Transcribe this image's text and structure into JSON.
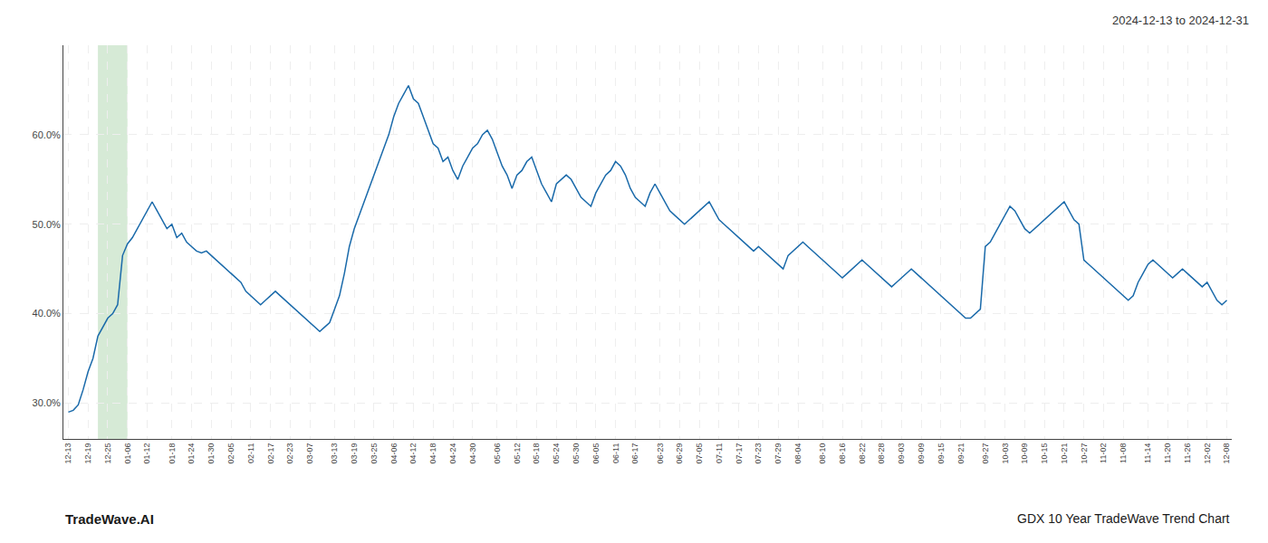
{
  "chart_data": {
    "type": "line",
    "title": "2024-12-13 to 2024-12-31",
    "annotations": [
      "TradeWave.AI",
      "GDX 10 Year TradeWave Trend Chart"
    ],
    "color": "#1a6aaa",
    "grid": true,
    "ylim": [
      26,
      70
    ],
    "yticks": [
      {
        "value": 30.0,
        "label": "30.0%"
      },
      {
        "value": 40.0,
        "label": "40.0%"
      },
      {
        "value": 50.0,
        "label": "50.0%"
      },
      {
        "value": 60.0,
        "label": "60.0%"
      }
    ],
    "highlight": {
      "from": 6,
      "to": 12,
      "color": "#d6ead6"
    },
    "categories": [
      "12-13",
      null,
      null,
      null,
      "12-19",
      null,
      null,
      null,
      "12-25",
      null,
      null,
      null,
      "01-06",
      null,
      null,
      null,
      "01-12",
      null,
      null,
      null,
      null,
      "01-18",
      null,
      null,
      null,
      "01-24",
      null,
      null,
      null,
      "01-30",
      null,
      null,
      null,
      "02-05",
      null,
      null,
      null,
      "02-11",
      null,
      null,
      null,
      "02-17",
      null,
      null,
      null,
      "02-23",
      null,
      null,
      null,
      "03-07",
      null,
      null,
      null,
      null,
      "03-13",
      null,
      null,
      null,
      "03-19",
      null,
      null,
      null,
      "03-25",
      null,
      null,
      null,
      "04-06",
      null,
      null,
      null,
      "04-12",
      null,
      null,
      null,
      "04-18",
      null,
      null,
      null,
      "04-24",
      null,
      null,
      null,
      "04-30",
      null,
      null,
      null,
      null,
      "05-06",
      null,
      null,
      null,
      "05-12",
      null,
      null,
      null,
      "05-18",
      null,
      null,
      null,
      "05-24",
      null,
      null,
      null,
      "05-30",
      null,
      null,
      null,
      "06-05",
      null,
      null,
      null,
      "06-11",
      null,
      null,
      null,
      "06-17",
      null,
      null,
      null,
      null,
      "06-23",
      null,
      null,
      null,
      "06-29",
      null,
      null,
      null,
      "07-05",
      null,
      null,
      null,
      "07-11",
      null,
      null,
      null,
      "07-17",
      null,
      null,
      null,
      "07-23",
      null,
      null,
      null,
      "07-29",
      null,
      null,
      null,
      "08-04",
      null,
      null,
      null,
      null,
      "08-10",
      null,
      null,
      null,
      "08-16",
      null,
      null,
      null,
      "08-22",
      null,
      null,
      null,
      "08-28",
      null,
      null,
      null,
      "09-03",
      null,
      null,
      null,
      "09-09",
      null,
      null,
      null,
      "09-15",
      null,
      null,
      null,
      "09-21",
      null,
      null,
      null,
      null,
      "09-27",
      null,
      null,
      null,
      "10-03",
      null,
      null,
      null,
      "10-09",
      null,
      null,
      null,
      "10-15",
      null,
      null,
      null,
      "10-21",
      null,
      null,
      null,
      "10-27",
      null,
      null,
      null,
      "11-02",
      null,
      null,
      null,
      "11-08",
      null,
      null,
      null,
      null,
      "11-14",
      null,
      null,
      null,
      "11-20",
      null,
      null,
      null,
      "11-26",
      null,
      null,
      null,
      "12-02",
      null,
      null,
      null,
      "12-08"
    ],
    "values": [
      29.0,
      29.2,
      29.8,
      31.5,
      33.5,
      35.0,
      37.5,
      38.5,
      39.5,
      40.0,
      41.0,
      46.5,
      47.8,
      48.5,
      49.5,
      50.5,
      51.5,
      52.5,
      51.5,
      50.5,
      49.5,
      50.0,
      48.5,
      49.0,
      48.0,
      47.5,
      47.0,
      46.8,
      47.0,
      46.5,
      46.0,
      45.5,
      45.0,
      44.5,
      44.0,
      43.5,
      42.5,
      42.0,
      41.5,
      41.0,
      41.5,
      42.0,
      42.5,
      42.0,
      41.5,
      41.0,
      40.5,
      40.0,
      39.5,
      39.0,
      38.5,
      38.0,
      38.5,
      39.0,
      40.5,
      42.0,
      44.5,
      47.5,
      49.5,
      51.0,
      52.5,
      54.0,
      55.5,
      57.0,
      58.5,
      60.0,
      62.0,
      63.5,
      64.5,
      65.5,
      64.0,
      63.5,
      62.0,
      60.5,
      59.0,
      58.5,
      57.0,
      57.5,
      56.0,
      55.0,
      56.5,
      57.5,
      58.5,
      59.0,
      60.0,
      60.5,
      59.5,
      58.0,
      56.5,
      55.5,
      54.0,
      55.5,
      56.0,
      57.0,
      57.5,
      56.0,
      54.5,
      53.5,
      52.5,
      54.5,
      55.0,
      55.5,
      55.0,
      54.0,
      53.0,
      52.5,
      52.0,
      53.5,
      54.5,
      55.5,
      56.0,
      57.0,
      56.5,
      55.5,
      54.0,
      53.0,
      52.5,
      52.0,
      53.5,
      54.5,
      53.5,
      52.5,
      51.5,
      51.0,
      50.5,
      50.0,
      50.5,
      51.0,
      51.5,
      52.0,
      52.5,
      51.5,
      50.5,
      50.0,
      49.5,
      49.0,
      48.5,
      48.0,
      47.5,
      47.0,
      47.5,
      47.0,
      46.5,
      46.0,
      45.5,
      45.0,
      46.5,
      47.0,
      47.5,
      48.0,
      47.5,
      47.0,
      46.5,
      46.0,
      45.5,
      45.0,
      44.5,
      44.0,
      44.5,
      45.0,
      45.5,
      46.0,
      45.5,
      45.0,
      44.5,
      44.0,
      43.5,
      43.0,
      43.5,
      44.0,
      44.5,
      45.0,
      44.5,
      44.0,
      43.5,
      43.0,
      42.5,
      42.0,
      41.5,
      41.0,
      40.5,
      40.0,
      39.5,
      39.5,
      40.0,
      40.5,
      47.5,
      48.0,
      49.0,
      50.0,
      51.0,
      52.0,
      51.5,
      50.5,
      49.5,
      49.0,
      49.5,
      50.0,
      50.5,
      51.0,
      51.5,
      52.0,
      52.5,
      51.5,
      50.5,
      50.0,
      46.0,
      45.5,
      45.0,
      44.5,
      44.0,
      43.5,
      43.0,
      42.5,
      42.0,
      41.5,
      42.0,
      43.5,
      44.5,
      45.5,
      46.0,
      45.5,
      45.0,
      44.5,
      44.0,
      44.5,
      45.0,
      44.5,
      44.0,
      43.5,
      43.0,
      43.5,
      42.5,
      41.5,
      41.0,
      41.5
    ]
  }
}
